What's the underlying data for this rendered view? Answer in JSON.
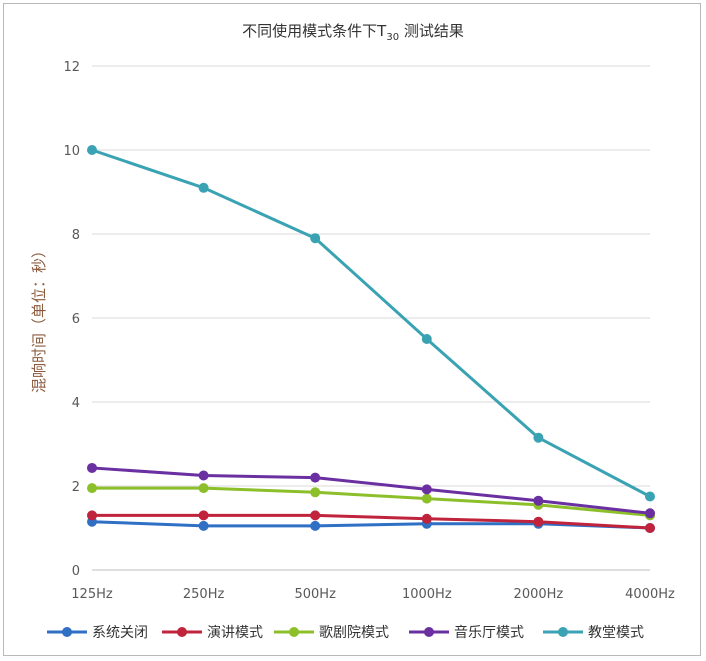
{
  "chart_data": {
    "type": "line",
    "title": "不同使用模式条件下T30 测试结果",
    "title_main": "不同使用模式条件下T",
    "title_sub": "30",
    "title_tail": " 测试结果",
    "xlabel": "",
    "ylabel": "混响时间（单位：秒）",
    "categories": [
      "125Hz",
      "250Hz",
      "500Hz",
      "1000Hz",
      "2000Hz",
      "4000Hz"
    ],
    "ylim": [
      0,
      12
    ],
    "yticks": [
      0,
      2,
      4,
      6,
      8,
      10,
      12
    ],
    "grid": true,
    "legend_position": "bottom",
    "series": [
      {
        "name": "系统关闭",
        "color": "#2f6fc4",
        "values": [
          1.15,
          1.05,
          1.05,
          1.1,
          1.1,
          1.0
        ]
      },
      {
        "name": "演讲模式",
        "color": "#c0233c",
        "values": [
          1.3,
          1.3,
          1.3,
          1.22,
          1.15,
          1.0
        ]
      },
      {
        "name": "歌剧院模式",
        "color": "#8cbf2a",
        "values": [
          1.95,
          1.95,
          1.85,
          1.7,
          1.55,
          1.3
        ]
      },
      {
        "name": "音乐厅模式",
        "color": "#6a2fa0",
        "values": [
          2.43,
          2.25,
          2.2,
          1.92,
          1.65,
          1.35
        ]
      },
      {
        "name": "教堂模式",
        "color": "#3aa3b3",
        "values": [
          10.0,
          9.1,
          7.9,
          5.5,
          3.15,
          1.75
        ]
      }
    ]
  }
}
